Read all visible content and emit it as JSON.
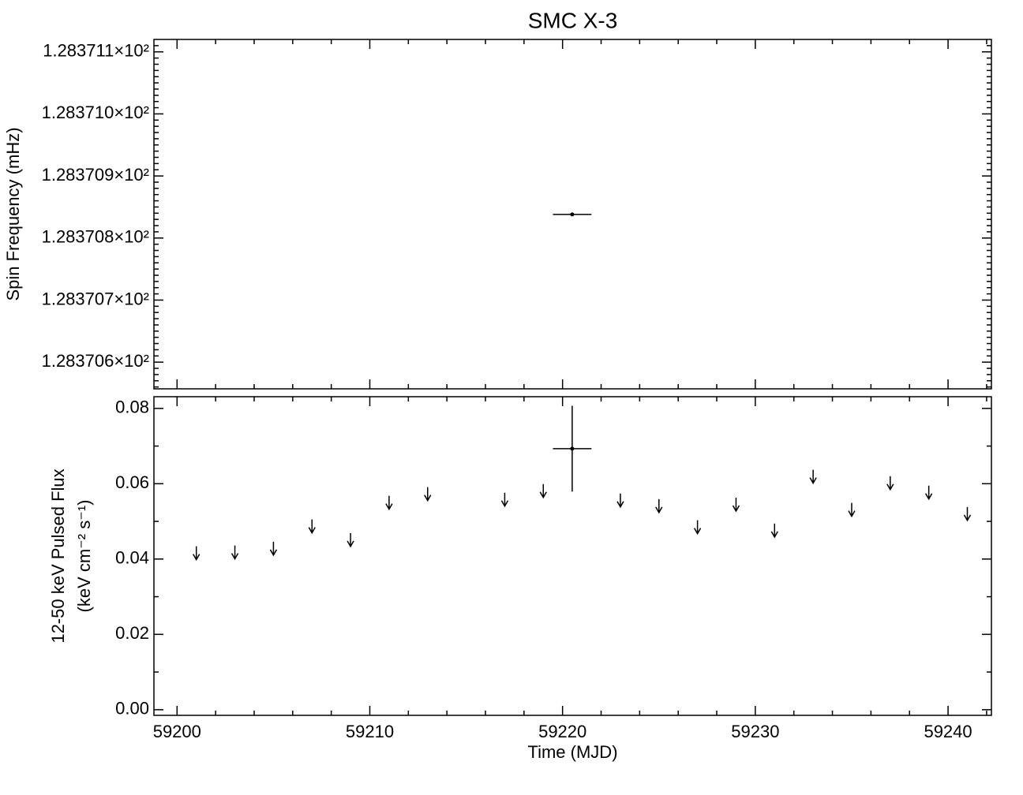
{
  "chart_data": [
    {
      "type": "errorbar",
      "title": "SMC X-3",
      "ylabel": "Spin Frequency (mHz)",
      "xlim": [
        59198.8,
        59242.25
      ],
      "xticks": [
        59200,
        59210,
        59220,
        59230,
        59240
      ],
      "xminor": 5,
      "show_xtick_labels": false,
      "ylim": [
        128.370557,
        128.37112
      ],
      "yticks": [
        {
          "value": 128.3706,
          "label": "1.283706×10²"
        },
        {
          "value": 128.3707,
          "label": "1.283707×10²"
        },
        {
          "value": 128.3708,
          "label": "1.283708×10²"
        },
        {
          "value": 128.3709,
          "label": "1.283709×10²"
        },
        {
          "value": 128.371,
          "label": "1.283710×10²"
        },
        {
          "value": 128.3711,
          "label": "1.283711×10²"
        }
      ],
      "yminor": 10,
      "color": "#000000",
      "series": [
        {
          "x": [
            59220.5
          ],
          "xerr": [
            1
          ],
          "values": [
            128.370838
          ],
          "yerr": [
            2.66e-07
          ]
        }
      ]
    },
    {
      "type": "errorbar",
      "xlabel": "Time (MJD)",
      "ylabel": [
        "12-50 keV Pulsed Flux",
        "(keV cm⁻² s⁻¹)"
      ],
      "xlim": [
        59198.8,
        59242.25
      ],
      "xticks": [
        59200,
        59210,
        59220,
        59230,
        59240
      ],
      "xminor": 5,
      "show_xtick_labels": true,
      "ylim": [
        -0.0015,
        0.0831
      ],
      "yticks": [
        {
          "value": 0,
          "label": "0.00"
        },
        {
          "value": 0.02,
          "label": "0.02"
        },
        {
          "value": 0.04,
          "label": "0.04"
        },
        {
          "value": 0.06,
          "label": "0.06"
        },
        {
          "value": 0.08,
          "label": "0.08"
        }
      ],
      "yminor": 2,
      "color": "#000000",
      "series": [
        {
          "x": [
            59220.5
          ],
          "xerr": [
            1
          ],
          "values": [
            0.0693
          ],
          "yerr": [
            0.0114
          ]
        },
        {
          "upper_limit": true,
          "x": [
            59201,
            59203,
            59205,
            59207,
            59209,
            59211,
            59213,
            59217,
            59219,
            59223,
            59225,
            59227,
            59229,
            59231,
            59233,
            59235,
            59237,
            59239,
            59241
          ],
          "values": [
            0.0434,
            0.0436,
            0.0446,
            0.0505,
            0.0469,
            0.0568,
            0.0591,
            0.0576,
            0.0599,
            0.0574,
            0.0559,
            0.0503,
            0.0563,
            0.0494,
            0.0637,
            0.0549,
            0.062,
            0.0595,
            0.0538
          ]
        }
      ]
    }
  ]
}
